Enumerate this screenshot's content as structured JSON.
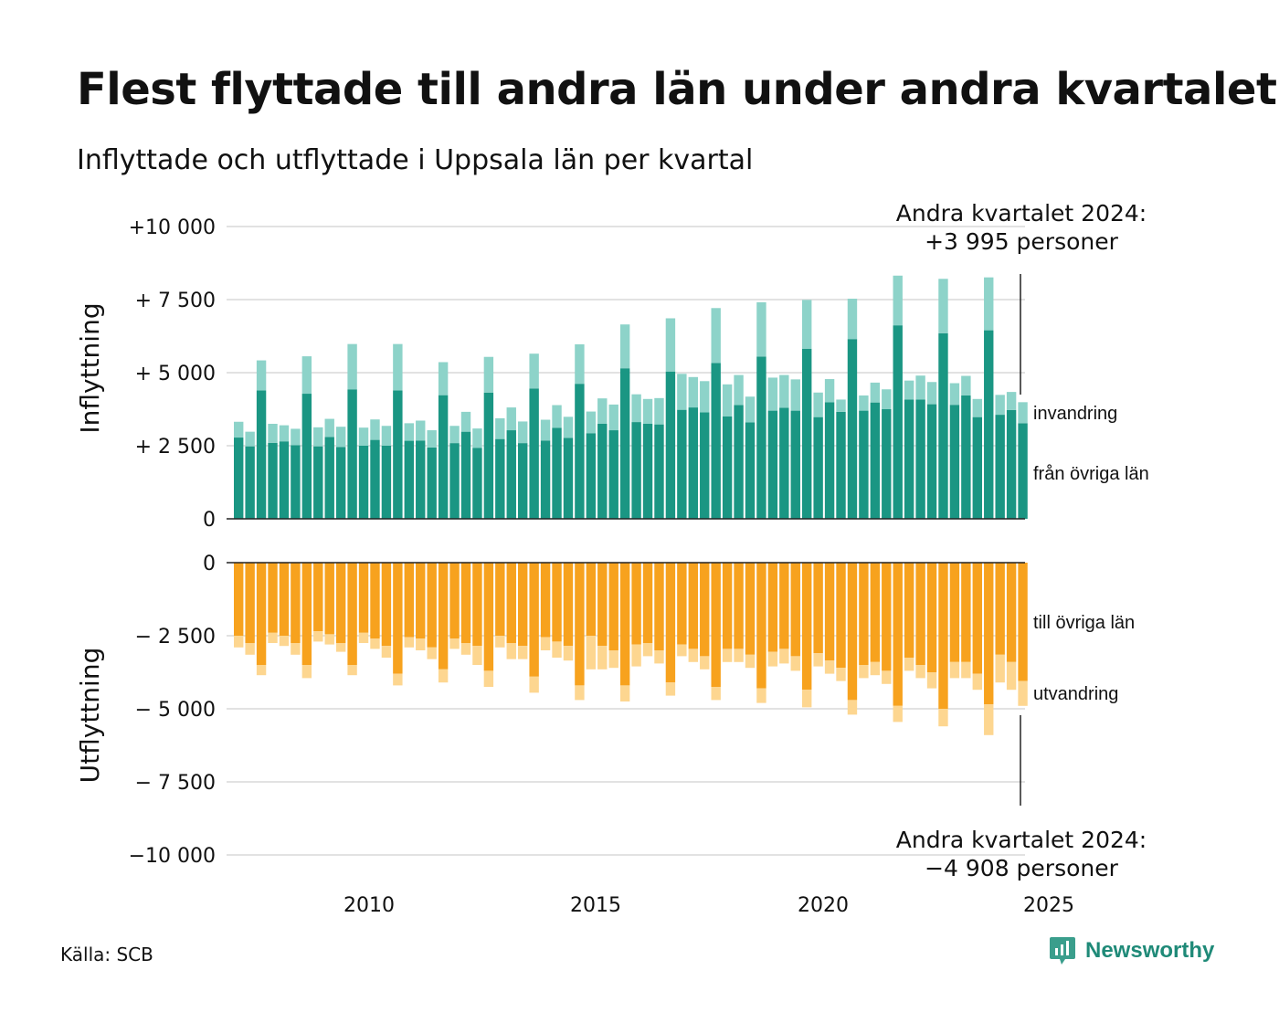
{
  "header": {
    "title": "Flest flyttade till andra län under andra kvartalet",
    "subtitle": "Inflyttade och utflyttade i Uppsala län per kvartal"
  },
  "footer": {
    "source": "Källa: SCB",
    "brand": "Newsworthy"
  },
  "annotations": {
    "top_line1": "Andra kvartalet 2024:",
    "top_line2": "+3 995 personer",
    "bottom_line1": "Andra kvartalet 2024:",
    "bottom_line2": "−4 908 personer"
  },
  "colors": {
    "in_domestic": "#1a9683",
    "in_immigration": "#8dd3c9",
    "out_domestic": "#f7a21e",
    "out_emigration": "#fdd690",
    "grid": "#e2e2e2"
  },
  "chart_data": [
    {
      "type": "bar",
      "stacked": true,
      "ylabel": "Inflyttning",
      "ylim": [
        0,
        10000
      ],
      "ytick_values": [
        0,
        2500,
        5000,
        7500,
        10000
      ],
      "ytick_labels": [
        "0",
        "+ 2 500",
        "+ 5 000",
        "+ 7 500",
        "+10 000"
      ],
      "x_start": "2007 Q1",
      "xtick_labels": [
        "2010",
        "2015",
        "2020",
        "2025"
      ],
      "series": [
        {
          "name": "från övriga län",
          "values": [
            2780,
            2480,
            4390,
            2600,
            2650,
            2520,
            4280,
            2480,
            2800,
            2460,
            4430,
            2500,
            2700,
            2500,
            4390,
            2670,
            2680,
            2440,
            4230,
            2590,
            2980,
            2430,
            4320,
            2730,
            3030,
            2590,
            4460,
            2680,
            3110,
            2770,
            4620,
            2930,
            3250,
            3030,
            5150,
            3310,
            3250,
            3230,
            5040,
            3730,
            3810,
            3640,
            5330,
            3500,
            3890,
            3300,
            5550,
            3700,
            3800,
            3700,
            5820,
            3480,
            3990,
            3660,
            6150,
            3700,
            3980,
            3750,
            6620,
            4080,
            4080,
            3920,
            6350,
            3900,
            4220,
            3480,
            6450,
            3560,
            3720,
            3270
          ]
        },
        {
          "name": "invandring",
          "values": [
            540,
            500,
            1030,
            650,
            550,
            560,
            1280,
            650,
            620,
            690,
            1550,
            620,
            700,
            680,
            1590,
            600,
            680,
            590,
            1130,
            590,
            680,
            660,
            1220,
            710,
            780,
            740,
            1190,
            710,
            780,
            720,
            1350,
            740,
            870,
            880,
            1500,
            950,
            850,
            900,
            1820,
            1230,
            1040,
            1070,
            1880,
            1100,
            1030,
            880,
            1860,
            1130,
            1120,
            1070,
            1670,
            840,
            790,
            420,
            1380,
            520,
            680,
            680,
            1700,
            650,
            820,
            760,
            1860,
            740,
            670,
            620,
            1810,
            680,
            620,
            720
          ]
        }
      ]
    },
    {
      "type": "bar",
      "stacked": true,
      "ylabel": "Utflyttning",
      "ylim": [
        -10000,
        0
      ],
      "ytick_values": [
        0,
        -2500,
        -5000,
        -7500,
        -10000
      ],
      "ytick_labels": [
        "0",
        "− 2 500",
        "− 5 000",
        "− 7 500",
        "−10 000"
      ],
      "x_start": "2007 Q1",
      "xtick_labels": [
        "2010",
        "2015",
        "2020",
        "2025"
      ],
      "series": [
        {
          "name": "till övriga län",
          "values": [
            -2500,
            -2750,
            -3500,
            -2400,
            -2500,
            -2750,
            -3500,
            -2350,
            -2450,
            -2750,
            -3500,
            -2400,
            -2600,
            -2850,
            -3800,
            -2550,
            -2600,
            -2900,
            -3650,
            -2600,
            -2750,
            -2850,
            -3700,
            -2500,
            -2750,
            -2850,
            -3900,
            -2550,
            -2700,
            -2850,
            -4200,
            -2500,
            -2850,
            -3000,
            -4200,
            -2800,
            -2750,
            -3000,
            -4100,
            -2800,
            -2950,
            -3200,
            -4250,
            -2950,
            -2950,
            -3150,
            -4300,
            -3050,
            -2950,
            -3200,
            -4350,
            -3100,
            -3350,
            -3600,
            -4700,
            -3500,
            -3400,
            -3700,
            -4900,
            -3250,
            -3500,
            -3750,
            -5000,
            -3400,
            -3400,
            -3800,
            -4850,
            -3150,
            -3400,
            -4050
          ]
        },
        {
          "name": "utvandring",
          "values": [
            -400,
            -400,
            -350,
            -350,
            -350,
            -400,
            -450,
            -350,
            -350,
            -300,
            -350,
            -350,
            -350,
            -400,
            -400,
            -350,
            -400,
            -400,
            -450,
            -350,
            -400,
            -650,
            -550,
            -400,
            -550,
            -450,
            -550,
            -450,
            -550,
            -500,
            -500,
            -1150,
            -800,
            -600,
            -550,
            -750,
            -450,
            -450,
            -450,
            -400,
            -450,
            -450,
            -450,
            -450,
            -450,
            -450,
            -500,
            -500,
            -500,
            -500,
            -600,
            -450,
            -450,
            -450,
            -500,
            -450,
            -450,
            -450,
            -550,
            -450,
            -450,
            -550,
            -600,
            -550,
            -550,
            -550,
            -1050,
            -950,
            -950,
            -850
          ]
        }
      ]
    }
  ]
}
